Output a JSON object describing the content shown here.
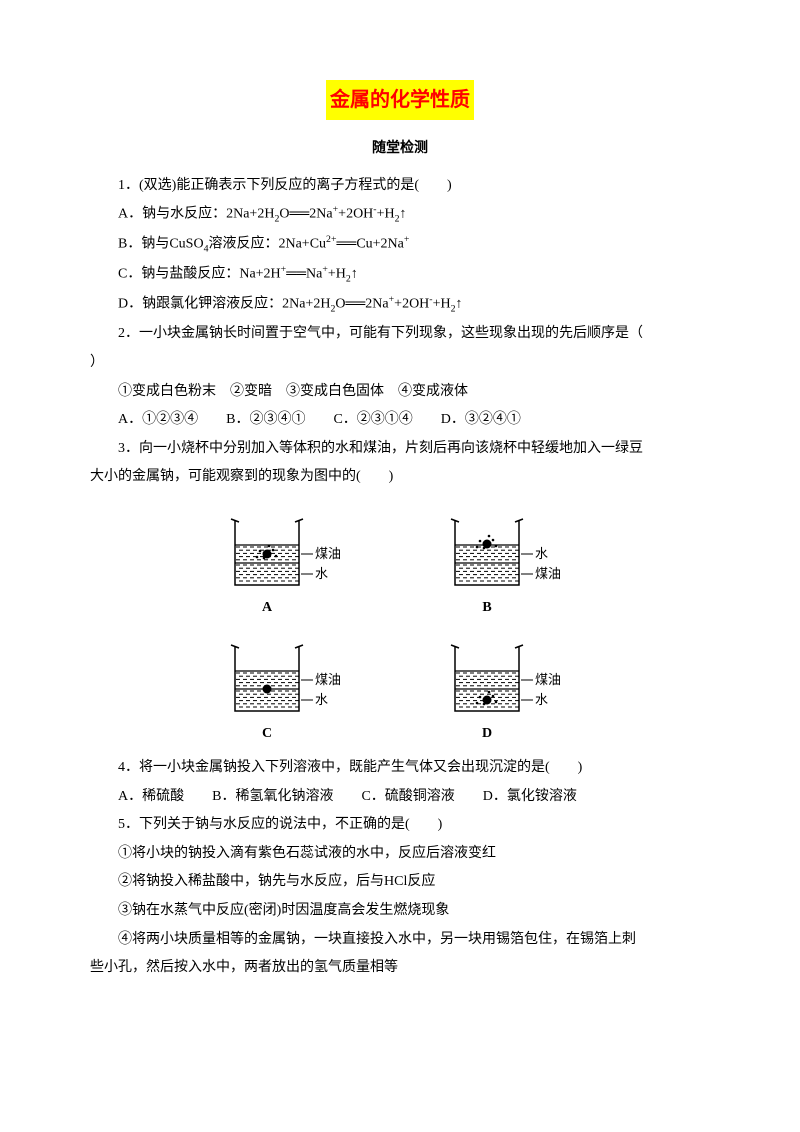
{
  "doc": {
    "title": "金属的化学性质",
    "subtitle": "随堂检测",
    "title_bg": "#ffff00",
    "title_color": "#ff0000"
  },
  "q1": {
    "stem": "1．(双选)能正确表示下列反应的离子方程式的是(　　)",
    "A_prefix": "A．钠与水反应：2Na+2H",
    "A_suffix": "O══2Na",
    "B_prefix": "B．钠与CuSO",
    "B_mid": "溶液反应：2Na+Cu",
    "B_end": "══Cu+2Na",
    "C_prefix": "C．钠与盐酸反应：Na+2H",
    "C_mid": "══Na",
    "D_prefix": "D．钠跟氯化钾溶液反应：2Na+2H",
    "D_mid": "O══2Na",
    "plus2oh": "+2OH",
    "plusH2up": "+H",
    "up_arrow": "↑",
    "two": "2",
    "plus_sup": "+",
    "plus2_sup": "2+"
  },
  "q2": {
    "stem_a": "2．一小块金属钠长时间置于空气中，可能有下列现象，这些现象出现的先后顺序是（　　",
    "stem_b": "）",
    "line2": "①变成白色粉末　②变暗　③变成白色固体　④变成液体",
    "opts": "A．①②③④　　B．②③④①　　C．②③①④　　D．③②④①"
  },
  "q3": {
    "stem_a": "3．向一小烧杯中分别加入等体积的水和煤油，片刻后再向该烧杯中轻缓地加入一绿豆",
    "stem_b": "大小的金属钠，可能观察到的现象为图中的(　　)"
  },
  "q4": {
    "stem": "4．将一小块金属钠投入下列溶液中，既能产生气体又会出现沉淀的是(　　)",
    "opts": "A．稀硫酸　　B．稀氢氧化钠溶液　　C．硫酸铜溶液　　D．氯化铵溶液"
  },
  "q5": {
    "stem": "5．下列关于钠与水反应的说法中，不正确的是(　　)",
    "l1": "①将小块的钠投入滴有紫色石蕊试液的水中，反应后溶液变红",
    "l2": "②将钠投入稀盐酸中，钠先与水反应，后与HCl反应",
    "l3": "③钠在水蒸气中反应(密闭)时因温度高会发生燃烧现象",
    "l4a": "④将两小块质量相等的金属钠，一块直接投入水中，另一块用锡箔包住，在锡箔上刺",
    "l4b": "些小孔，然后按入水中，两者放出的氢气质量相等"
  },
  "beakers": {
    "labels": {
      "A": "A",
      "B": "B",
      "C": "C",
      "D": "D"
    },
    "label_oil": "煤油",
    "label_water": "水",
    "specs": {
      "A": {
        "top_label": "煤油",
        "bot_label": "水",
        "ball": "upper",
        "bubbles": true
      },
      "B": {
        "top_label": "水",
        "bot_label": "煤油",
        "ball": "upper_surface",
        "bubbles": true
      },
      "C": {
        "top_label": "煤油",
        "bot_label": "水",
        "ball": "interface",
        "bubbles": false
      },
      "D": {
        "top_label": "煤油",
        "bot_label": "水",
        "ball": "lower",
        "bubbles": true
      }
    },
    "style": {
      "stroke": "#000000",
      "stroke_width": 1.5,
      "font_size": 13,
      "width": 130,
      "height": 110
    }
  }
}
